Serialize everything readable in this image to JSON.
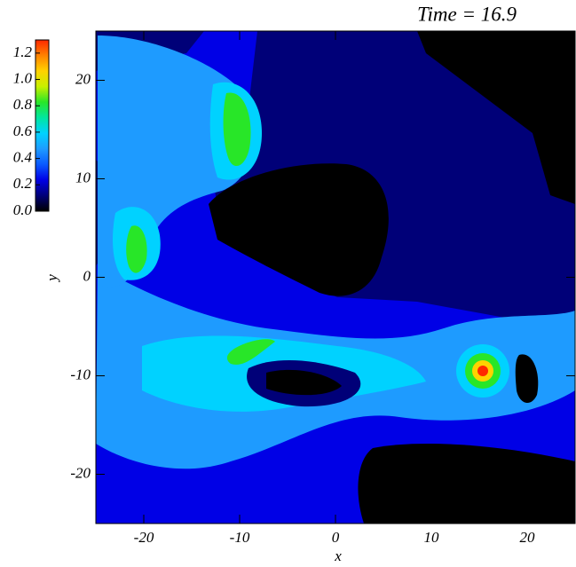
{
  "chart_data": {
    "type": "contour",
    "title": "Time = 16.9",
    "x_label": "x",
    "y_label": "y",
    "xlim": [
      -25,
      25
    ],
    "ylim": [
      -25,
      25
    ],
    "xticks": [
      -20,
      -10,
      0,
      10,
      20
    ],
    "yticks": [
      -20,
      -10,
      0,
      10,
      20
    ],
    "colorbar": {
      "lim": [
        0,
        1.3
      ],
      "ticks": [
        {
          "value": 0,
          "label": "0.0"
        },
        0.2,
        0.4,
        0.6,
        0.8,
        {
          "value": 1,
          "label": "1.0"
        },
        1.2
      ],
      "colors": [
        "#000000",
        "#000078",
        "#0000e6",
        "#0a5aff",
        "#1e9bff",
        "#00d2ff",
        "#00e6a0",
        "#28e628",
        "#c8f000",
        "#ffd200",
        "#ff8200",
        "#ff2800"
      ]
    }
  }
}
